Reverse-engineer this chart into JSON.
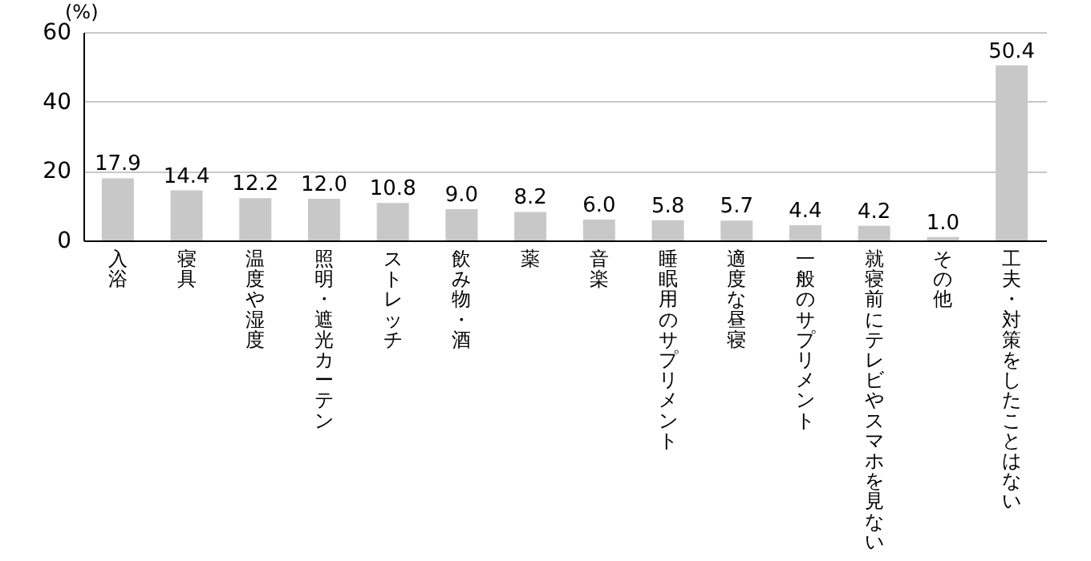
{
  "chart_data": {
    "type": "bar",
    "ylabel": "(%)",
    "categories": [
      "入浴",
      "寝具",
      "温度や湿度",
      "照明・遮光カーテン",
      "ストレッチ",
      "飲み物・酒",
      "薬",
      "音楽",
      "睡眠用のサプリメント",
      "適度な昼寝",
      "一般のサプリメント",
      "就寝前にテレビやスマホを見ない",
      "その他",
      "工夫・対策をしたことはない"
    ],
    "values": [
      17.9,
      14.4,
      12.2,
      12.0,
      10.8,
      9.0,
      8.2,
      6.0,
      5.8,
      5.7,
      4.4,
      4.2,
      1.0,
      50.4
    ],
    "value_labels": [
      "17.9",
      "14.4",
      "12.2",
      "12.0",
      "10.8",
      "9.0",
      "8.2",
      "6.0",
      "5.8",
      "5.7",
      "4.4",
      "4.2",
      "1.0",
      "50.4"
    ],
    "color": "#c8c8c8",
    "ylim": [
      0,
      60
    ],
    "yticks": [
      0,
      20,
      40,
      60
    ],
    "grid": "y"
  }
}
